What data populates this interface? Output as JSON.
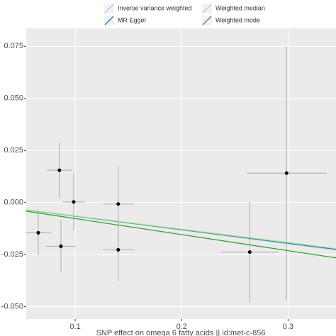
{
  "chart_data": {
    "type": "scatter",
    "x_label": "SNP effect on omega 6 fatty acids || id:met-c-856",
    "x": [
      0.0852,
      0.0986,
      0.0653,
      0.0866,
      0.1404,
      0.1404,
      0.264,
      0.2986
    ],
    "y": [
      0.0155,
      0.0003,
      -0.0145,
      -0.021,
      -0.0007,
      -0.0227,
      -0.0238,
      0.0141
    ],
    "x_err": [
      0.012,
      0.0106,
      0.012,
      0.0143,
      0.0143,
      0.0143,
      0.0266,
      0.0375
    ],
    "y_err": [
      0.0134,
      0.0139,
      0.0108,
      0.0124,
      0.0184,
      0.015,
      0.0241,
      0.0608
    ],
    "series": [
      {
        "name": "Inverse variance weighted",
        "color": "#a6cee3",
        "slope": -0.066
      },
      {
        "name": "MR Egger",
        "color": "#1f78b4",
        "slope": -0.065
      },
      {
        "name": "Weighted median",
        "color": "#b2df8a",
        "slope": -0.064
      },
      {
        "name": "Weighted mode",
        "color": "#33a02c",
        "slope": -0.077
      }
    ],
    "xlim": [
      0.054,
      0.345
    ],
    "ylim": [
      -0.0559,
      0.0836
    ],
    "xticks": [
      0.1,
      0.2,
      0.3
    ],
    "yticks": [
      {
        "value": -0.05,
        "label": "-0.050"
      },
      {
        "value": -0.025,
        "label": "-0.025"
      },
      {
        "value": 0,
        "label": "0.000"
      },
      {
        "value": 0.025,
        "label": "0.025"
      },
      {
        "value": 0.05,
        "label": "0.050"
      },
      {
        "value": 0.075,
        "label": "0.075"
      }
    ],
    "grid": true,
    "legend": "top"
  }
}
